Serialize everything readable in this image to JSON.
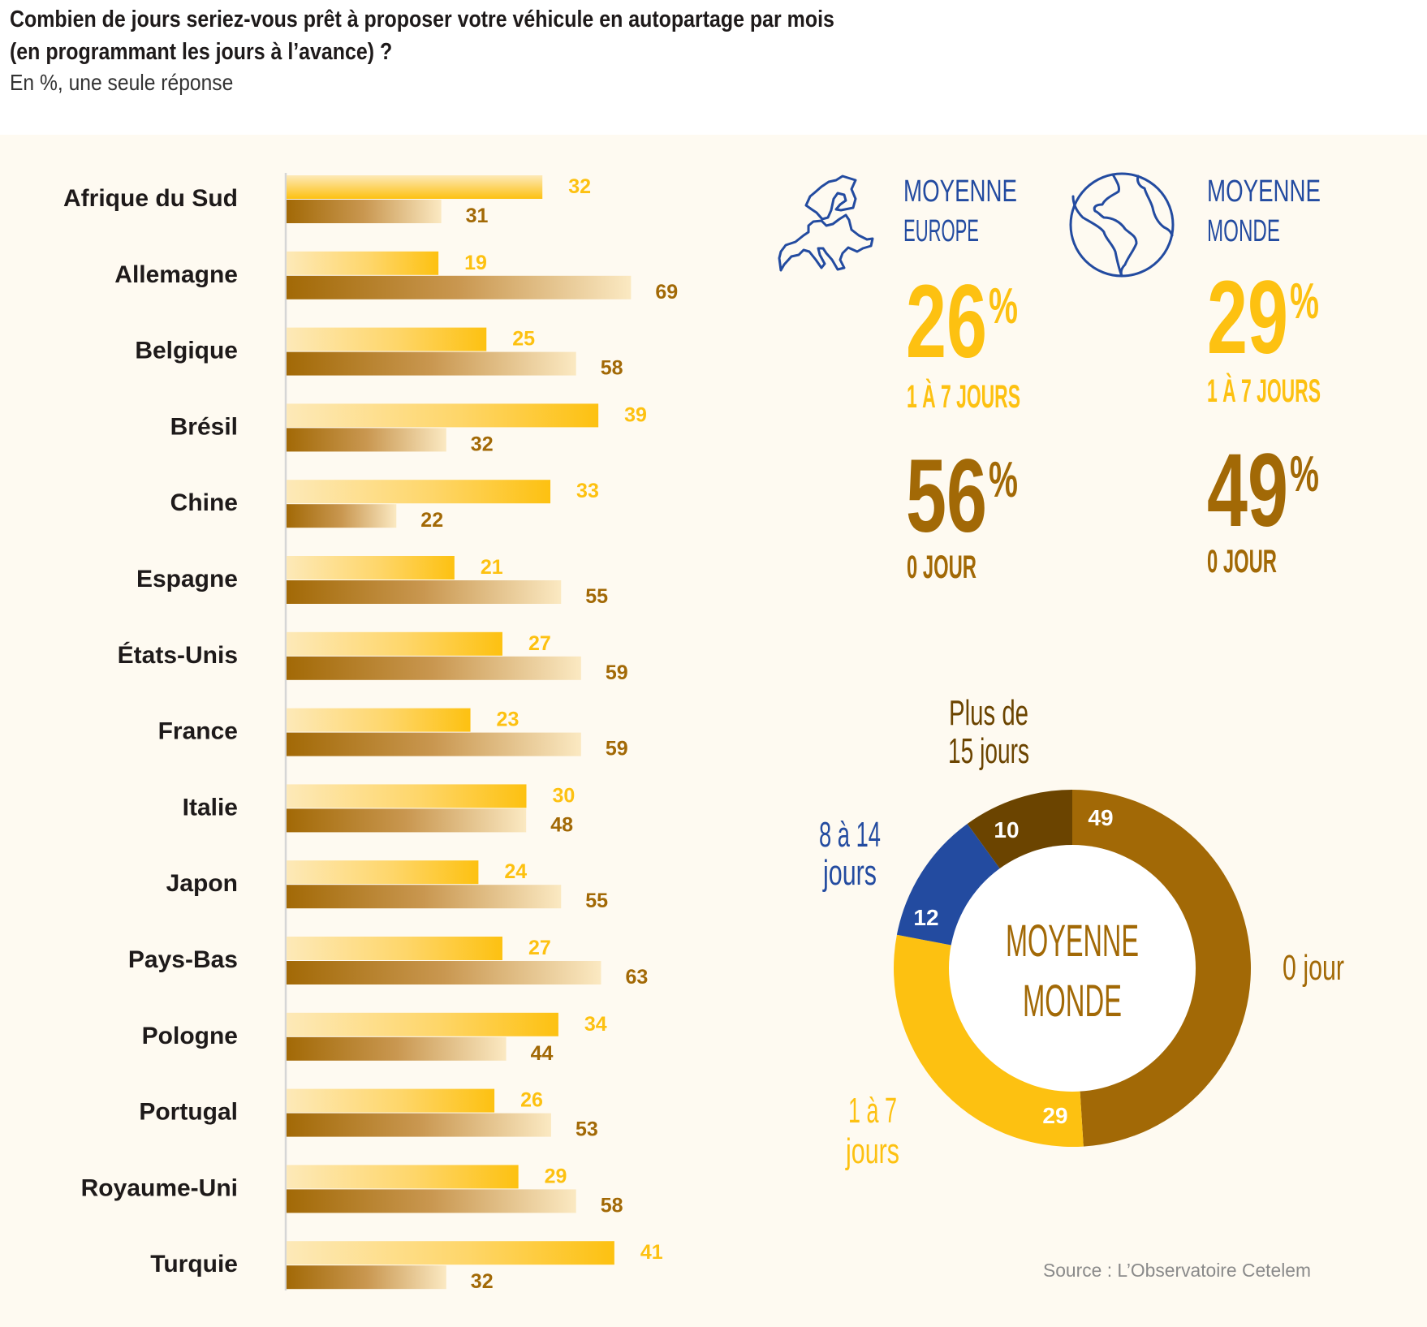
{
  "header": {
    "title_line1": "Combien de jours seriez-vous prêt à proposer votre véhicule en autopartage par mois",
    "title_line2": "(en programmant les jours à l’avance) ?",
    "subtitle": "En %, une seule réponse"
  },
  "colors": {
    "yellow": "#fdc111",
    "yellow_light": "#fde9b8",
    "brown": "#a26906",
    "brown_light": "#fbe9c2",
    "dark_brown": "#6b4400",
    "blue": "#234ba0",
    "text": "#1e1a1a",
    "panel_bg": "#fefaf1",
    "source_gray": "#8a8a8a"
  },
  "chart_data": [
    {
      "type": "bar",
      "orientation": "horizontal",
      "categories": [
        "Afrique du Sud",
        "Allemagne",
        "Belgique",
        "Brésil",
        "Chine",
        "Espagne",
        "États-Unis",
        "France",
        "Italie",
        "Japon",
        "Pays-Bas",
        "Pologne",
        "Portugal",
        "Royaume-Uni",
        "Turquie"
      ],
      "series": [
        {
          "name": "1 à 7 jours",
          "color": "#fdc111",
          "values": [
            32,
            19,
            25,
            39,
            33,
            21,
            27,
            23,
            30,
            24,
            27,
            34,
            26,
            29,
            41
          ]
        },
        {
          "name": "0 jour",
          "color": "#a26906",
          "values": [
            31,
            69,
            58,
            32,
            22,
            55,
            59,
            59,
            48,
            55,
            63,
            44,
            53,
            58,
            32
          ]
        }
      ],
      "xlabel": "",
      "ylabel": "",
      "grid": false,
      "unit": "%"
    },
    {
      "type": "pie",
      "donut": true,
      "title": "MOYENNE MONDE",
      "center_label_line1": "MOYENNE",
      "center_label_line2": "MONDE",
      "slices": [
        {
          "label": "0 jour",
          "value": 49,
          "color": "#a26906",
          "label_lines": [
            "0 jour"
          ]
        },
        {
          "label": "1 à 7 jours",
          "value": 29,
          "color": "#fdc111",
          "label_lines": [
            "1 à 7",
            "jours"
          ]
        },
        {
          "label": "8 à 14 jours",
          "value": 12,
          "color": "#234ba0",
          "label_lines": [
            "8 à 14",
            "jours"
          ]
        },
        {
          "label": "Plus de 15 jours",
          "value": 10,
          "color": "#6b4400",
          "label_lines": [
            "Plus de",
            "15 jours"
          ]
        }
      ]
    }
  ],
  "averages": {
    "europe": {
      "icon": "europe-map-icon",
      "label_line1": "MOYENNE",
      "label_line2": "EUROPE",
      "stat1_value": "26",
      "stat1_label": "1 À 7 JOURS",
      "stat2_value": "56",
      "stat2_label": "0 JOUR",
      "percent_sign": "%"
    },
    "monde": {
      "icon": "globe-icon",
      "label_line1": "MOYENNE",
      "label_line2": "MONDE",
      "stat1_value": "29",
      "stat1_label": "1 À 7 JOURS",
      "stat2_value": "49",
      "stat2_label": "0 JOUR",
      "percent_sign": "%"
    }
  },
  "source": "Source : L’Observatoire Cetelem"
}
